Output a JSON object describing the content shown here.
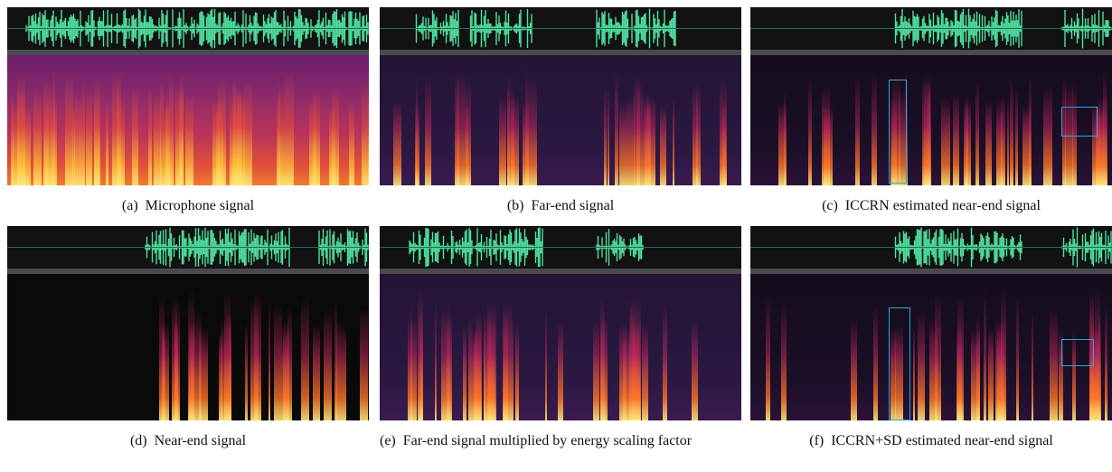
{
  "figure": {
    "panels": [
      {
        "label": "(a)",
        "caption": "Microphone signal"
      },
      {
        "label": "(b)",
        "caption": "Far-end signal"
      },
      {
        "label": "(c)",
        "caption": "ICCRN estimated near-end signal"
      },
      {
        "label": "(d)",
        "caption": "Near-end signal"
      },
      {
        "label": "(e)",
        "caption": "Far-end signal multiplied by energy scaling factor"
      },
      {
        "label": "(f)",
        "caption": "ICCRN+SD estimated near-end signal"
      }
    ]
  }
}
